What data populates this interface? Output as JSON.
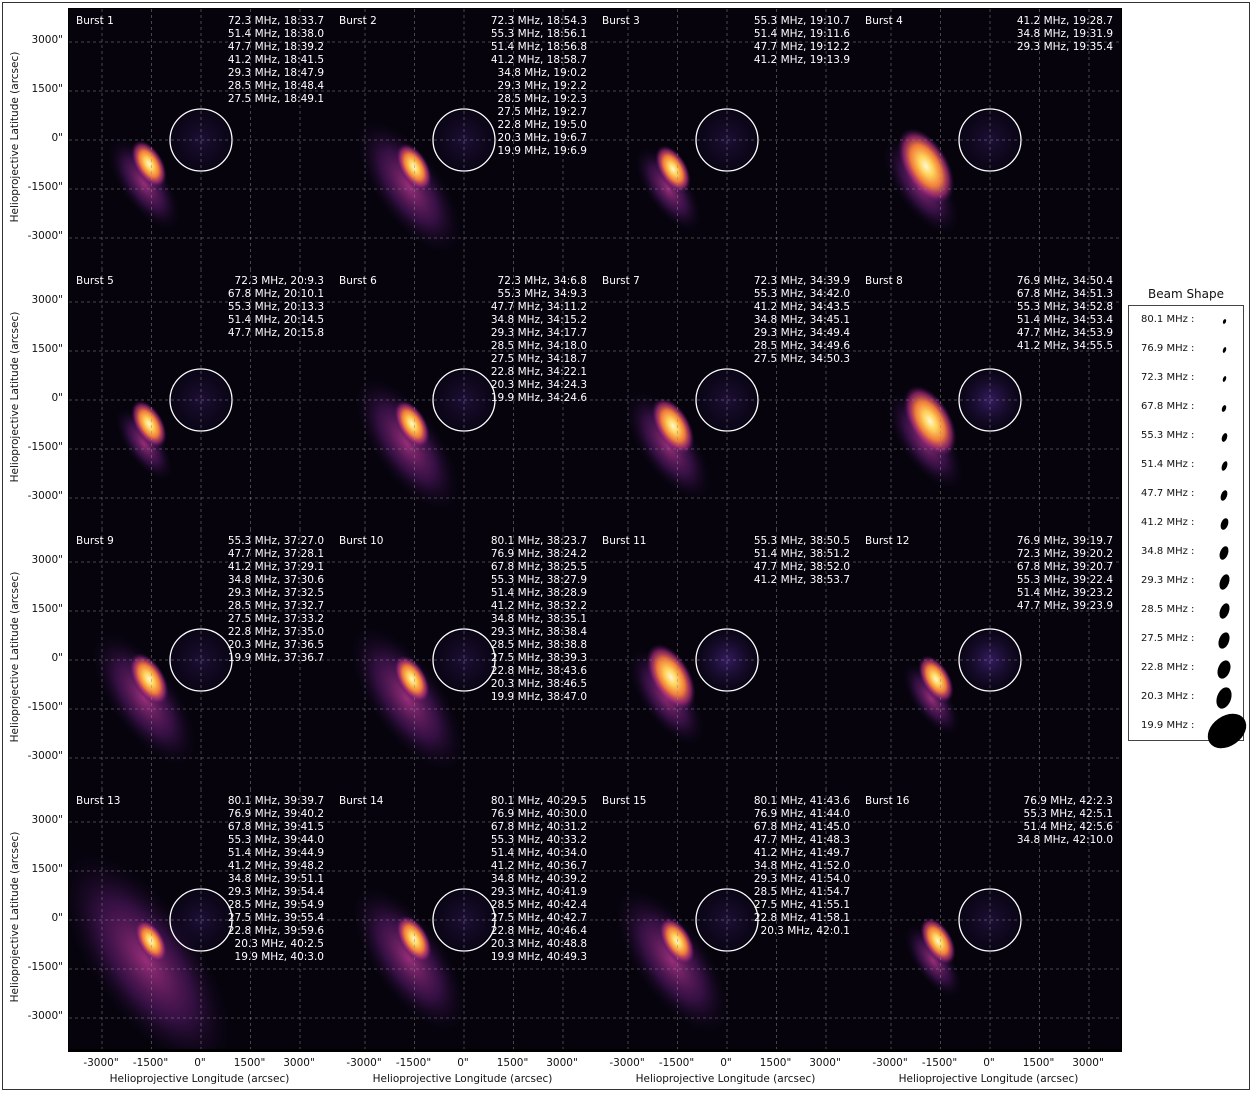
{
  "axis": {
    "ylabel": "Helioprojective Latitude (arcsec)",
    "xlabel": "Helioprojective Longitude (arcsec)",
    "yticks": [
      "3000\"",
      "1500\"",
      "0\"",
      "-1500\"",
      "-3000\""
    ],
    "xticks": [
      "-3000\"",
      "-1500\"",
      "0\"",
      "1500\"",
      "3000\""
    ]
  },
  "bursts": [
    {
      "title": "Burst 1",
      "list": [
        "72.3 MHz, 18:33.7",
        "51.4 MHz, 18:38.0",
        "47.7 MHz, 18:39.2",
        "41.2 MHz, 18:41.5",
        "29.3 MHz, 18:47.9",
        "28.5 MHz, 18:48.4",
        "27.5 MHz, 18:49.1"
      ]
    },
    {
      "title": "Burst 2",
      "list": [
        "72.3 MHz, 18:54.3",
        "55.3 MHz, 18:56.1",
        "51.4 MHz, 18:56.8",
        "41.2 MHz, 18:58.7",
        "34.8 MHz, 19:0.2",
        "29.3 MHz, 19:2.2",
        "28.5 MHz, 19:2.3",
        "27.5 MHz, 19:2.7",
        "22.8 MHz, 19:5.0",
        "20.3 MHz, 19:6.7",
        "19.9 MHz, 19:6.9"
      ]
    },
    {
      "title": "Burst 3",
      "list": [
        "55.3 MHz, 19:10.7",
        "51.4 MHz, 19:11.6",
        "47.7 MHz, 19:12.2",
        "41.2 MHz, 19:13.9"
      ]
    },
    {
      "title": "Burst 4",
      "list": [
        "41.2 MHz, 19:28.7",
        "34.8 MHz, 19:31.9",
        "29.3 MHz, 19:35.4"
      ]
    },
    {
      "title": "Burst 5",
      "list": [
        "72.3 MHz, 20:9.3",
        "67.8 MHz, 20:10.1",
        "55.3 MHz, 20:13.3",
        "51.4 MHz, 20:14.5",
        "47.7 MHz, 20:15.8"
      ]
    },
    {
      "title": "Burst 6",
      "list": [
        "72.3 MHz, 34:6.8",
        "55.3 MHz, 34:9.3",
        "47.7 MHz, 34:11.2",
        "34.8 MHz, 34:15.2",
        "29.3 MHz, 34:17.7",
        "28.5 MHz, 34:18.0",
        "27.5 MHz, 34:18.7",
        "22.8 MHz, 34:22.1",
        "20.3 MHz, 34:24.3",
        "19.9 MHz, 34:24.6"
      ]
    },
    {
      "title": "Burst 7",
      "list": [
        "72.3 MHz, 34:39.9",
        "55.3 MHz, 34:42.0",
        "41.2 MHz, 34:43.5",
        "34.8 MHz, 34:45.1",
        "29.3 MHz, 34:49.4",
        "28.5 MHz, 34:49.6",
        "27.5 MHz, 34:50.3"
      ]
    },
    {
      "title": "Burst 8",
      "list": [
        "76.9 MHz, 34:50.4",
        "67.8 MHz, 34:51.3",
        "55.3 MHz, 34:52.8",
        "51.4 MHz, 34:53.4",
        "47.7 MHz, 34:53.9",
        "41.2 MHz, 34:55.5"
      ]
    },
    {
      "title": "Burst 9",
      "list": [
        "55.3 MHz, 37:27.0",
        "47.7 MHz, 37:28.1",
        "41.2 MHz, 37:29.1",
        "34.8 MHz, 37:30.6",
        "29.3 MHz, 37:32.5",
        "28.5 MHz, 37:32.7",
        "27.5 MHz, 37:33.2",
        "22.8 MHz, 37:35.0",
        "20.3 MHz, 37:36.5",
        "19.9 MHz, 37:36.7"
      ]
    },
    {
      "title": "Burst 10",
      "list": [
        "80.1 MHz, 38:23.7",
        "76.9 MHz, 38:24.2",
        "67.8 MHz, 38:25.5",
        "55.3 MHz, 38:27.9",
        "51.4 MHz, 38:28.9",
        "41.2 MHz, 38:32.2",
        "34.8 MHz, 38:35.1",
        "29.3 MHz, 38:38.4",
        "28.5 MHz, 38:38.8",
        "27.5 MHz, 38:39.3",
        "22.8 MHz, 38:43.6",
        "20.3 MHz, 38:46.5",
        "19.9 MHz, 38:47.0"
      ]
    },
    {
      "title": "Burst 11",
      "list": [
        "55.3 MHz, 38:50.5",
        "51.4 MHz, 38:51.2",
        "47.7 MHz, 38:52.0",
        "41.2 MHz, 38:53.7"
      ]
    },
    {
      "title": "Burst 12",
      "list": [
        "76.9 MHz, 39:19.7",
        "72.3 MHz, 39:20.2",
        "67.8 MHz, 39:20.7",
        "55.3 MHz, 39:22.4",
        "51.4 MHz, 39:23.2",
        "47.7 MHz, 39:23.9"
      ]
    },
    {
      "title": "Burst 13",
      "list": [
        "80.1 MHz, 39:39.7",
        "76.9 MHz, 39:40.2",
        "67.8 MHz, 39:41.5",
        "55.3 MHz, 39:44.0",
        "51.4 MHz, 39:44.9",
        "41.2 MHz, 39:48.2",
        "34.8 MHz, 39:51.1",
        "29.3 MHz, 39:54.4",
        "28.5 MHz, 39:54.9",
        "27.5 MHz, 39:55.4",
        "22.8 MHz, 39:59.6",
        "20.3 MHz, 40:2.5",
        "19.9 MHz, 40:3.0"
      ]
    },
    {
      "title": "Burst 14",
      "list": [
        "80.1 MHz, 40:29.5",
        "76.9 MHz, 40:30.0",
        "67.8 MHz, 40:31.2",
        "55.3 MHz, 40:33.2",
        "51.4 MHz, 40:34.0",
        "41.2 MHz, 40:36.7",
        "34.8 MHz, 40:39.2",
        "29.3 MHz, 40:41.9",
        "28.5 MHz, 40:42.4",
        "27.5 MHz, 40:42.7",
        "22.8 MHz, 40:46.4",
        "20.3 MHz, 40:48.8",
        "19.9 MHz, 40:49.3"
      ]
    },
    {
      "title": "Burst 15",
      "list": [
        "80.1 MHz, 41:43.6",
        "76.9 MHz, 41:44.0",
        "67.8 MHz, 41:45.0",
        "47.7 MHz, 41:48.3",
        "41.2 MHz, 41:49.7",
        "34.8 MHz, 41:52.0",
        "29.3 MHz, 41:54.0",
        "28.5 MHz, 41:54.7",
        "27.5 MHz, 41:55.1",
        "22.8 MHz, 41:58.1",
        "20.3 MHz, 42:0.1"
      ]
    },
    {
      "title": "Burst 16",
      "list": [
        "76.9 MHz, 42:2.3",
        "55.3 MHz, 42:5.1",
        "51.4 MHz, 42:5.6",
        "34.8 MHz, 42:10.0"
      ]
    }
  ],
  "beam": {
    "title": "Beam Shape",
    "rows": [
      {
        "label": "80.1 MHz :",
        "w": 3,
        "h": 5
      },
      {
        "label": "76.9 MHz :",
        "w": 3,
        "h": 6
      },
      {
        "label": "72.3 MHz :",
        "w": 3,
        "h": 6
      },
      {
        "label": "67.8 MHz :",
        "w": 4,
        "h": 7
      },
      {
        "label": "55.3 MHz :",
        "w": 5,
        "h": 9
      },
      {
        "label": "51.4 MHz :",
        "w": 5,
        "h": 10
      },
      {
        "label": "47.7 MHz :",
        "w": 6,
        "h": 11
      },
      {
        "label": "41.2 MHz :",
        "w": 7,
        "h": 12
      },
      {
        "label": "34.8 MHz :",
        "w": 8,
        "h": 14
      },
      {
        "label": "29.3 MHz :",
        "w": 9,
        "h": 16
      },
      {
        "label": "28.5 MHz :",
        "w": 9,
        "h": 16
      },
      {
        "label": "27.5 MHz :",
        "w": 10,
        "h": 17
      },
      {
        "label": "22.8 MHz :",
        "w": 12,
        "h": 19
      },
      {
        "label": "20.3 MHz :",
        "w": 14,
        "h": 22
      },
      {
        "label": "19.9 MHz :",
        "w": 30,
        "h": 42
      }
    ]
  }
}
